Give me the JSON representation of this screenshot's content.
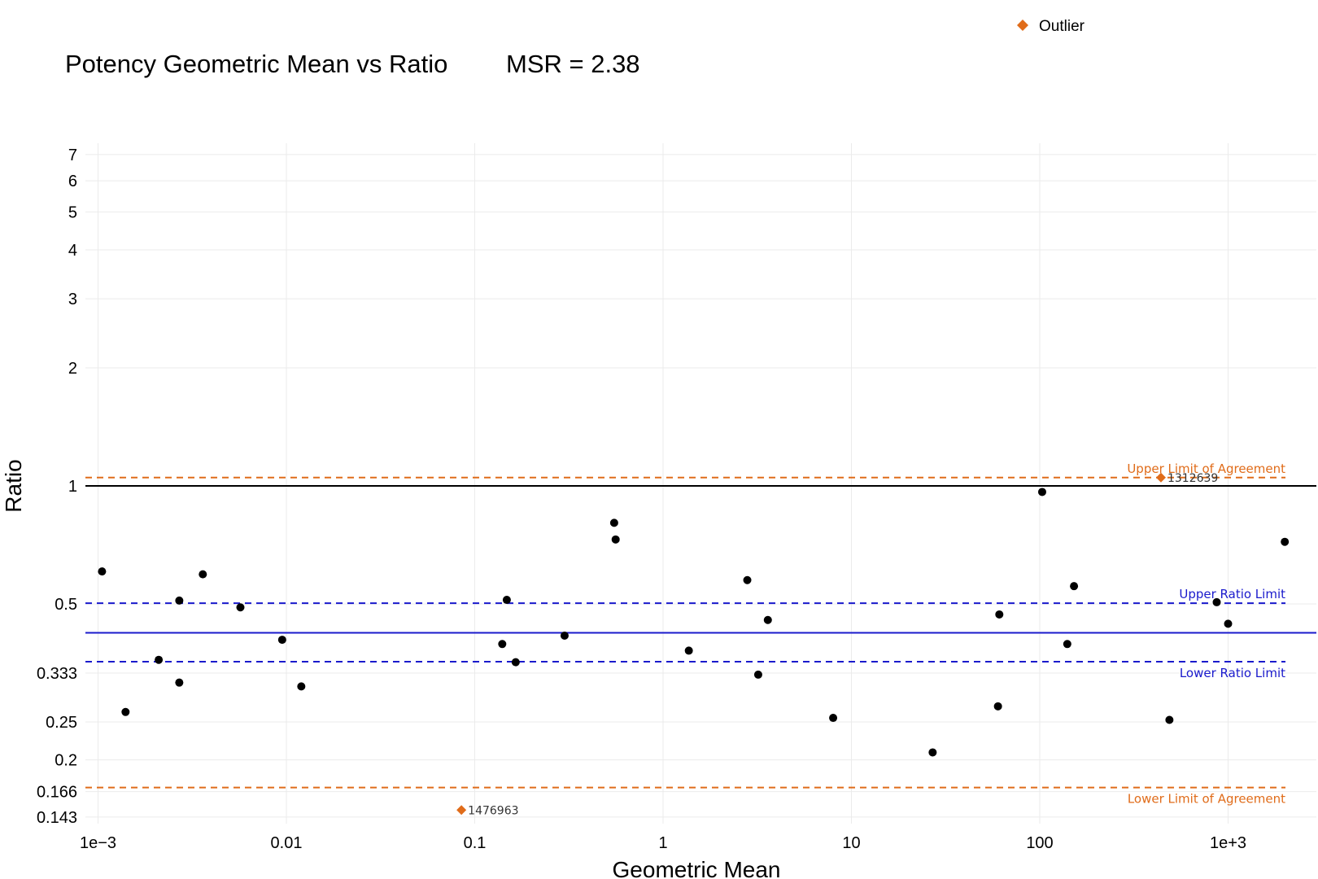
{
  "chart_data": {
    "type": "scatter",
    "title": "Potency Geometric Mean vs Ratio",
    "subtitle": "MSR = 2.38",
    "xlabel": "Geometric Mean",
    "ylabel": "Ratio",
    "x_scale": "log10",
    "y_scale": "log",
    "xlim": [
      0.00085,
      2300
    ],
    "ylim": [
      0.14,
      7.2
    ],
    "grid": true,
    "legend_position": "top-right",
    "x_ticks": [
      {
        "value": 0.001,
        "label": "1e−3"
      },
      {
        "value": 0.01,
        "label": "0.01"
      },
      {
        "value": 0.1,
        "label": "0.1"
      },
      {
        "value": 1,
        "label": "1"
      },
      {
        "value": 10,
        "label": "10"
      },
      {
        "value": 100,
        "label": "100"
      },
      {
        "value": 1000,
        "label": "1e+3"
      }
    ],
    "y_ticks": [
      {
        "value": 0.143,
        "label": "0.143"
      },
      {
        "value": 0.166,
        "label": "0.166"
      },
      {
        "value": 0.2,
        "label": "0.2"
      },
      {
        "value": 0.25,
        "label": "0.25"
      },
      {
        "value": 0.333,
        "label": "0.333"
      },
      {
        "value": 0.5,
        "label": "0.5"
      },
      {
        "value": 1,
        "label": "1"
      },
      {
        "value": 2,
        "label": "2"
      },
      {
        "value": 3,
        "label": "3"
      },
      {
        "value": 4,
        "label": "4"
      },
      {
        "value": 5,
        "label": "5"
      },
      {
        "value": 6,
        "label": "6"
      },
      {
        "value": 7,
        "label": "7"
      }
    ],
    "reference_lines": [
      {
        "label": "Upper Limit of Agreement",
        "y": 1.05,
        "color": "#e06c1a",
        "style": "dashed"
      },
      {
        "label": "",
        "y": 1.0,
        "color": "#000000",
        "style": "solid"
      },
      {
        "label": "Upper Ratio Limit",
        "y": 0.502,
        "color": "#1a1acc",
        "style": "dashed"
      },
      {
        "label": "",
        "y": 0.422,
        "color": "#1a1acc",
        "style": "solid"
      },
      {
        "label": "Lower Ratio Limit",
        "y": 0.356,
        "color": "#1a1acc",
        "style": "dashed"
      },
      {
        "label": "Lower Limit of Agreement",
        "y": 0.17,
        "color": "#e06c1a",
        "style": "dashed"
      }
    ],
    "series": [
      {
        "points": [
          {
            "x": 0.00105,
            "y": 0.605
          },
          {
            "x": 0.0014,
            "y": 0.265
          },
          {
            "x": 0.0021,
            "y": 0.36
          },
          {
            "x": 0.0027,
            "y": 0.51
          },
          {
            "x": 0.0027,
            "y": 0.315
          },
          {
            "x": 0.0036,
            "y": 0.595
          },
          {
            "x": 0.0057,
            "y": 0.49
          },
          {
            "x": 0.0095,
            "y": 0.405
          },
          {
            "x": 0.012,
            "y": 0.308
          },
          {
            "x": 0.14,
            "y": 0.395
          },
          {
            "x": 0.148,
            "y": 0.512
          },
          {
            "x": 0.165,
            "y": 0.355
          },
          {
            "x": 0.3,
            "y": 0.415
          },
          {
            "x": 0.55,
            "y": 0.805
          },
          {
            "x": 0.56,
            "y": 0.73
          },
          {
            "x": 1.37,
            "y": 0.38
          },
          {
            "x": 2.8,
            "y": 0.575
          },
          {
            "x": 3.2,
            "y": 0.33
          },
          {
            "x": 3.6,
            "y": 0.455
          },
          {
            "x": 8.0,
            "y": 0.256
          },
          {
            "x": 27,
            "y": 0.209
          },
          {
            "x": 60,
            "y": 0.274
          },
          {
            "x": 61,
            "y": 0.47
          },
          {
            "x": 103,
            "y": 0.965
          },
          {
            "x": 140,
            "y": 0.395
          },
          {
            "x": 152,
            "y": 0.555
          },
          {
            "x": 488,
            "y": 0.253
          },
          {
            "x": 870,
            "y": 0.505
          },
          {
            "x": 1000,
            "y": 0.445
          },
          {
            "x": 2000,
            "y": 0.72
          }
        ]
      },
      {
        "name": "Outlier",
        "color": "#e06c1a",
        "marker": "diamond",
        "points": [
          {
            "x": 0.085,
            "y": 0.149,
            "label": "1476963"
          },
          {
            "x": 440,
            "y": 1.05,
            "label": "1312639"
          }
        ]
      }
    ]
  }
}
